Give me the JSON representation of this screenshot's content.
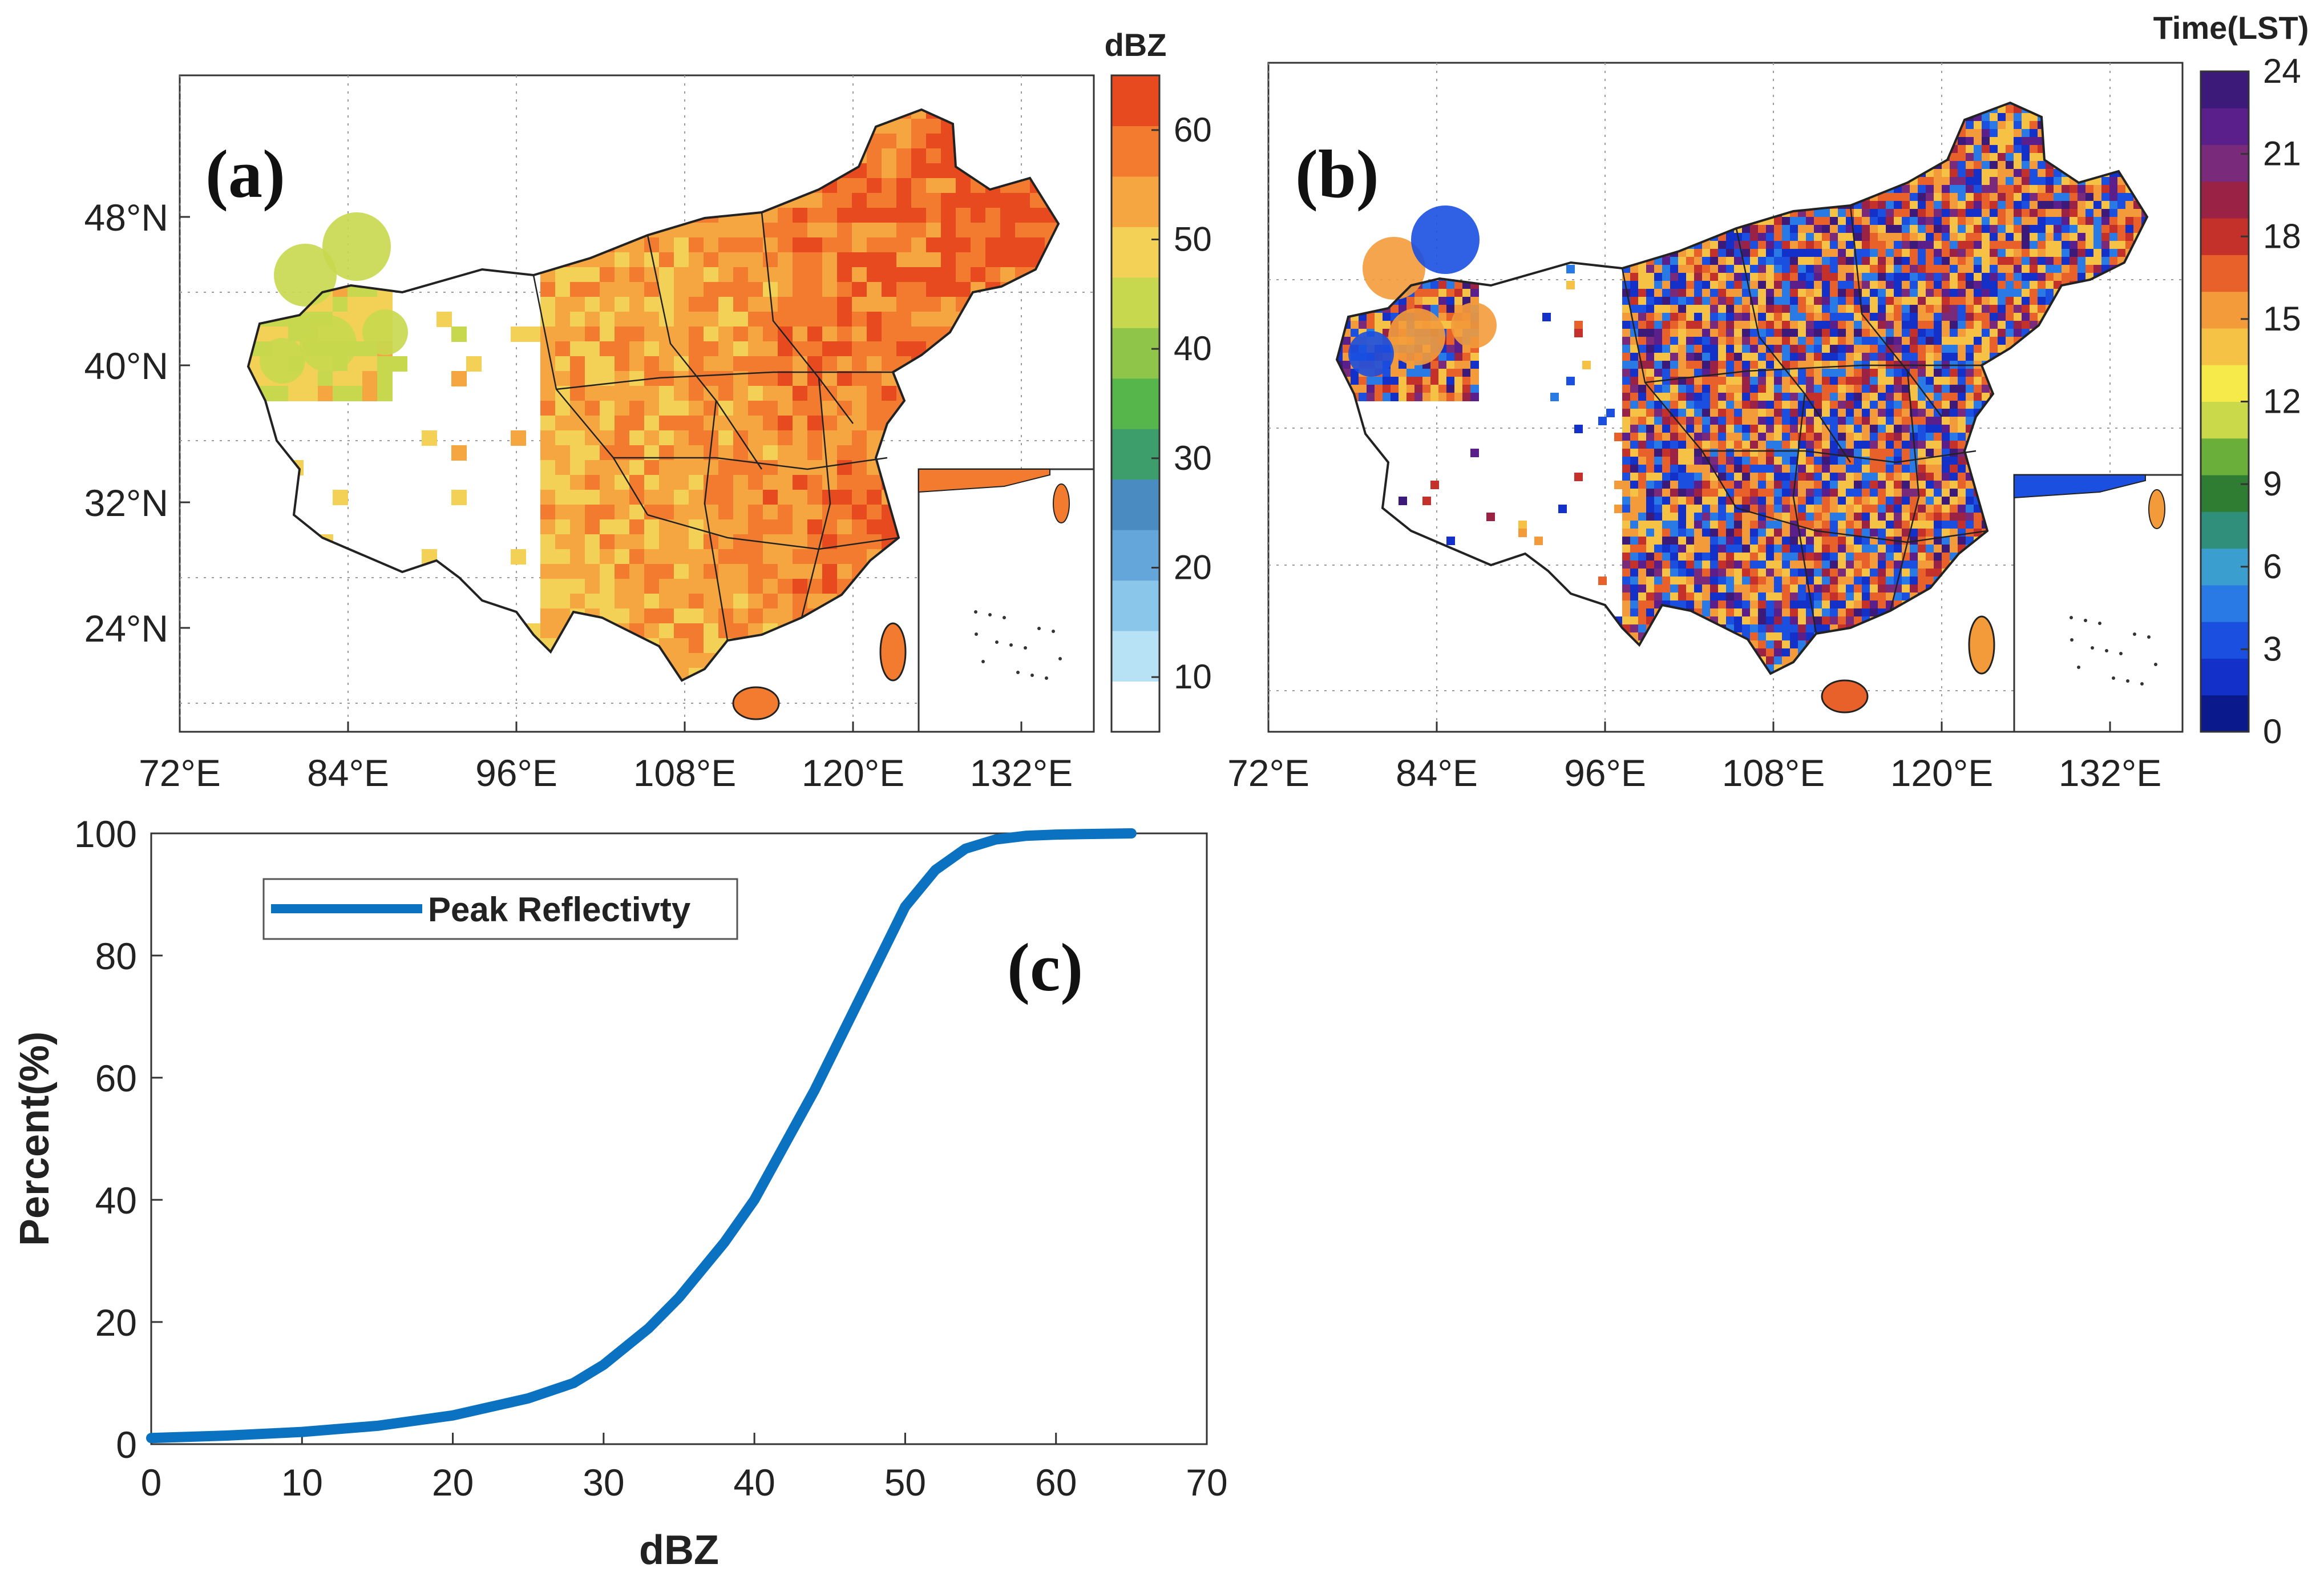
{
  "chart_data": [
    {
      "type": "heatmap",
      "panel_label": "(a)",
      "description_unit": "dBZ",
      "colorbar_title": "dBZ",
      "colorbar_ticks": [
        10,
        20,
        30,
        40,
        50,
        60
      ],
      "colorbar_range": [
        5,
        65
      ],
      "colorbar_colors": [
        "#ffffff",
        "#b7e2f6",
        "#8ac5ea",
        "#64a6da",
        "#4a8cc2",
        "#3d9e6c",
        "#57b64b",
        "#8fc64a",
        "#c8d84e",
        "#f3d157",
        "#f5a640",
        "#f27b2f",
        "#e84a1f"
      ],
      "x_ticks": [
        "72°E",
        "84°E",
        "96°E",
        "108°E",
        "120°E",
        "132°E"
      ],
      "y_ticks": [
        "48°N",
        "40°N",
        "32°N",
        "24°N"
      ]
    },
    {
      "type": "heatmap",
      "panel_label": "(b)",
      "description_unit": "Time(LST)",
      "colorbar_title": "Time(LST)",
      "colorbar_ticks": [
        0,
        3,
        6,
        9,
        12,
        15,
        18,
        21,
        24
      ],
      "colorbar_range": [
        0,
        24
      ],
      "colorbar_colors": [
        "#0a1a8c",
        "#1330c8",
        "#1a4fe0",
        "#2a7ae6",
        "#3a9ecf",
        "#2f8f7a",
        "#2e7d32",
        "#6aaf3a",
        "#c9d94a",
        "#f6ea4a",
        "#f6c246",
        "#f39b3a",
        "#e8612a",
        "#c4302a",
        "#9a2244",
        "#7a2a7a",
        "#5a1f8a",
        "#3b1a7a"
      ],
      "x_ticks": [
        "72°E",
        "84°E",
        "96°E",
        "108°E",
        "120°E",
        "132°E"
      ],
      "y_ticks": [
        "48°N",
        "40°N",
        "32°N",
        "24°N"
      ]
    },
    {
      "type": "line",
      "panel_label": "(c)",
      "xlabel": "dBZ",
      "ylabel": "Percent(%)",
      "xlim": [
        0,
        70
      ],
      "ylim": [
        0,
        100
      ],
      "x_ticks": [
        0,
        10,
        20,
        30,
        40,
        50,
        60,
        70
      ],
      "y_ticks": [
        0,
        20,
        40,
        60,
        80,
        100
      ],
      "legend": "top-left",
      "series": [
        {
          "name": "Peak Reflectivty",
          "color": "#0a72c0",
          "x": [
            0,
            5,
            10,
            15,
            20,
            25,
            28,
            30,
            33,
            35,
            38,
            40,
            42,
            44,
            46,
            48,
            50,
            52,
            54,
            56,
            58,
            60,
            62,
            65
          ],
          "y": [
            1,
            1.4,
            2,
            3,
            4.7,
            7.5,
            10,
            13,
            19,
            24,
            33,
            40,
            49,
            58,
            68,
            78,
            88,
            94,
            97.5,
            99,
            99.6,
            99.8,
            99.9,
            100
          ]
        }
      ]
    }
  ]
}
